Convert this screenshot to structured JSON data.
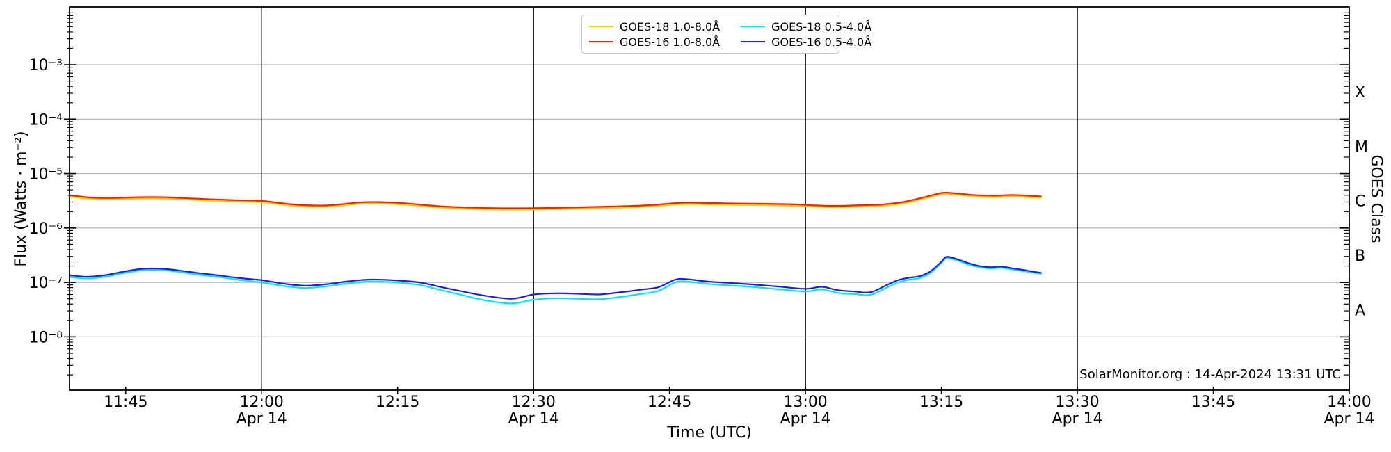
{
  "chart_data": {
    "type": "line",
    "title": "",
    "xlabel": "Time (UTC)",
    "ylabel": "Flux (Watts · m⁻²)",
    "ylabel_right": "GOES Class",
    "annotation": "SolarMonitor.org : 14-Apr-2024 13:31 UTC",
    "x_axis": {
      "unit": "hours UTC",
      "date": "Apr 14",
      "lim_hours": [
        11.6467,
        14.0
      ]
    },
    "y_axis": {
      "scale": "log",
      "lim": [
        1.05e-09,
        0.0115
      ]
    },
    "grid": true,
    "grid_color": "#b4b4b4",
    "vline_color": "#000000",
    "vlines_hours": [
      12.0,
      12.5,
      13.0,
      13.5
    ],
    "x_ticks": [
      {
        "t": 11.75,
        "label": "11:45",
        "sub": ""
      },
      {
        "t": 12.0,
        "label": "12:00",
        "sub": "Apr 14"
      },
      {
        "t": 12.25,
        "label": "12:15",
        "sub": ""
      },
      {
        "t": 12.5,
        "label": "12:30",
        "sub": "Apr 14"
      },
      {
        "t": 12.75,
        "label": "12:45",
        "sub": ""
      },
      {
        "t": 13.0,
        "label": "13:00",
        "sub": "Apr 14"
      },
      {
        "t": 13.25,
        "label": "13:15",
        "sub": ""
      },
      {
        "t": 13.5,
        "label": "13:30",
        "sub": "Apr 14"
      },
      {
        "t": 13.75,
        "label": "13:45",
        "sub": ""
      },
      {
        "t": 14.0,
        "label": "14:00",
        "sub": "Apr 14"
      }
    ],
    "y_ticks": [
      {
        "v": 0.001,
        "label": "10⁻³"
      },
      {
        "v": 0.0001,
        "label": "10⁻⁴"
      },
      {
        "v": 1e-05,
        "label": "10⁻⁵"
      },
      {
        "v": 1e-06,
        "label": "10⁻⁶"
      },
      {
        "v": 1e-07,
        "label": "10⁻⁷"
      },
      {
        "v": 1e-08,
        "label": "10⁻⁸"
      }
    ],
    "goes_class_ticks": [
      {
        "v": 0.000316,
        "label": "X"
      },
      {
        "v": 3.16e-05,
        "label": "M"
      },
      {
        "v": 3.16e-06,
        "label": "C"
      },
      {
        "v": 3.16e-07,
        "label": "B"
      },
      {
        "v": 3.16e-08,
        "label": "A"
      }
    ],
    "legend": {
      "position": "upper center",
      "items": [
        {
          "label": "GOES-18 1.0-8.0Å",
          "color": "#ffd000"
        },
        {
          "label": "GOES-16 1.0-8.0Å",
          "color": "#ff2000"
        },
        {
          "label": "GOES-18 0.5-4.0Å",
          "color": "#00e6f2"
        },
        {
          "label": "GOES-16 0.5-4.0Å",
          "color": "#2020e0"
        }
      ]
    },
    "series": [
      {
        "name": "GOES-18 1.0-8.0Å",
        "color": "#ffd000",
        "width": 2.8,
        "points": [
          [
            11.647,
            3.8e-06
          ],
          [
            11.665,
            3.61e-06
          ],
          [
            11.69,
            3.42e-06
          ],
          [
            11.72,
            3.37e-06
          ],
          [
            11.76,
            3.47e-06
          ],
          [
            11.8,
            3.52e-06
          ],
          [
            11.83,
            3.47e-06
          ],
          [
            11.87,
            3.33e-06
          ],
          [
            11.91,
            3.18e-06
          ],
          [
            11.95,
            3.09e-06
          ],
          [
            12.0,
            2.99e-06
          ],
          [
            12.03,
            2.76e-06
          ],
          [
            12.06,
            2.57e-06
          ],
          [
            12.09,
            2.47e-06
          ],
          [
            12.12,
            2.47e-06
          ],
          [
            12.15,
            2.61e-06
          ],
          [
            12.18,
            2.8e-06
          ],
          [
            12.21,
            2.85e-06
          ],
          [
            12.25,
            2.76e-06
          ],
          [
            12.29,
            2.57e-06
          ],
          [
            12.33,
            2.38e-06
          ],
          [
            12.37,
            2.28e-06
          ],
          [
            12.42,
            2.2e-06
          ],
          [
            12.47,
            2.19e-06
          ],
          [
            12.52,
            2.21e-06
          ],
          [
            12.57,
            2.26e-06
          ],
          [
            12.62,
            2.33e-06
          ],
          [
            12.67,
            2.39e-06
          ],
          [
            12.71,
            2.49e-06
          ],
          [
            12.75,
            2.66e-06
          ],
          [
            12.78,
            2.77e-06
          ],
          [
            12.82,
            2.74e-06
          ],
          [
            12.87,
            2.68e-06
          ],
          [
            12.93,
            2.64e-06
          ],
          [
            12.98,
            2.58e-06
          ],
          [
            13.02,
            2.47e-06
          ],
          [
            13.06,
            2.42e-06
          ],
          [
            13.1,
            2.49e-06
          ],
          [
            13.14,
            2.57e-06
          ],
          [
            13.18,
            2.85e-06
          ],
          [
            13.215,
            3.42e-06
          ],
          [
            13.245,
            4.09e-06
          ],
          [
            13.26,
            4.23e-06
          ],
          [
            13.285,
            4.04e-06
          ],
          [
            13.315,
            3.8e-06
          ],
          [
            13.35,
            3.72e-06
          ],
          [
            13.38,
            3.85e-06
          ],
          [
            13.41,
            3.72e-06
          ],
          [
            13.433,
            3.61e-06
          ]
        ]
      },
      {
        "name": "GOES-16 1.0-8.0Å",
        "color": "#ff2000",
        "width": 2.2,
        "points": [
          [
            11.647,
            4e-06
          ],
          [
            11.665,
            3.8e-06
          ],
          [
            11.69,
            3.6e-06
          ],
          [
            11.72,
            3.55e-06
          ],
          [
            11.76,
            3.65e-06
          ],
          [
            11.8,
            3.7e-06
          ],
          [
            11.83,
            3.65e-06
          ],
          [
            11.87,
            3.5e-06
          ],
          [
            11.91,
            3.35e-06
          ],
          [
            11.95,
            3.25e-06
          ],
          [
            12.0,
            3.15e-06
          ],
          [
            12.03,
            2.9e-06
          ],
          [
            12.06,
            2.7e-06
          ],
          [
            12.09,
            2.6e-06
          ],
          [
            12.12,
            2.6e-06
          ],
          [
            12.15,
            2.75e-06
          ],
          [
            12.18,
            2.95e-06
          ],
          [
            12.21,
            3e-06
          ],
          [
            12.25,
            2.9e-06
          ],
          [
            12.29,
            2.7e-06
          ],
          [
            12.33,
            2.5e-06
          ],
          [
            12.37,
            2.4e-06
          ],
          [
            12.42,
            2.32e-06
          ],
          [
            12.47,
            2.3e-06
          ],
          [
            12.52,
            2.33e-06
          ],
          [
            12.57,
            2.38e-06
          ],
          [
            12.62,
            2.45e-06
          ],
          [
            12.67,
            2.52e-06
          ],
          [
            12.71,
            2.62e-06
          ],
          [
            12.75,
            2.8e-06
          ],
          [
            12.78,
            2.92e-06
          ],
          [
            12.82,
            2.88e-06
          ],
          [
            12.87,
            2.82e-06
          ],
          [
            12.93,
            2.78e-06
          ],
          [
            12.98,
            2.72e-06
          ],
          [
            13.02,
            2.6e-06
          ],
          [
            13.06,
            2.55e-06
          ],
          [
            13.1,
            2.62e-06
          ],
          [
            13.14,
            2.7e-06
          ],
          [
            13.18,
            3e-06
          ],
          [
            13.215,
            3.6e-06
          ],
          [
            13.245,
            4.3e-06
          ],
          [
            13.26,
            4.45e-06
          ],
          [
            13.285,
            4.25e-06
          ],
          [
            13.315,
            4e-06
          ],
          [
            13.35,
            3.92e-06
          ],
          [
            13.38,
            4.05e-06
          ],
          [
            13.41,
            3.92e-06
          ],
          [
            13.433,
            3.8e-06
          ]
        ]
      },
      {
        "name": "GOES-18 0.5-4.0Å",
        "color": "#00e6f2",
        "width": 2.2,
        "points": [
          [
            11.647,
            1.25e-07
          ],
          [
            11.68,
            1.18e-07
          ],
          [
            11.71,
            1.26e-07
          ],
          [
            11.75,
            1.5e-07
          ],
          [
            11.78,
            1.68e-07
          ],
          [
            11.81,
            1.7e-07
          ],
          [
            11.84,
            1.6e-07
          ],
          [
            11.88,
            1.4e-07
          ],
          [
            11.92,
            1.26e-07
          ],
          [
            11.96,
            1.11e-07
          ],
          [
            12.0,
            1e-07
          ],
          [
            12.04,
            8.6e-08
          ],
          [
            12.08,
            7.9e-08
          ],
          [
            12.12,
            8.5e-08
          ],
          [
            12.16,
            9.6e-08
          ],
          [
            12.2,
            1.04e-07
          ],
          [
            12.24,
            1.01e-07
          ],
          [
            12.29,
            9e-08
          ],
          [
            12.33,
            7.2e-08
          ],
          [
            12.37,
            5.8e-08
          ],
          [
            12.41,
            4.7e-08
          ],
          [
            12.46,
            4.1e-08
          ],
          [
            12.5,
            4.8e-08
          ],
          [
            12.54,
            5.1e-08
          ],
          [
            12.58,
            5e-08
          ],
          [
            12.62,
            4.9e-08
          ],
          [
            12.66,
            5.4e-08
          ],
          [
            12.7,
            6.2e-08
          ],
          [
            12.73,
            7e-08
          ],
          [
            12.76,
            1e-07
          ],
          [
            12.78,
            1.04e-07
          ],
          [
            12.82,
            9.4e-08
          ],
          [
            12.86,
            8.8e-08
          ],
          [
            12.9,
            8.3e-08
          ],
          [
            12.95,
            7.5e-08
          ],
          [
            13.0,
            6.8e-08
          ],
          [
            13.03,
            7.4e-08
          ],
          [
            13.06,
            6.4e-08
          ],
          [
            13.09,
            6.1e-08
          ],
          [
            13.12,
            5.9e-08
          ],
          [
            13.15,
            8.1e-08
          ],
          [
            13.17,
            1e-07
          ],
          [
            13.19,
            1.12e-07
          ],
          [
            13.21,
            1.2e-07
          ],
          [
            13.23,
            1.5e-07
          ],
          [
            13.25,
            2.28e-07
          ],
          [
            13.26,
            2.8e-07
          ],
          [
            13.28,
            2.52e-07
          ],
          [
            13.3,
            2.12e-07
          ],
          [
            13.32,
            1.9e-07
          ],
          [
            13.34,
            1.8e-07
          ],
          [
            13.36,
            1.85e-07
          ],
          [
            13.38,
            1.73e-07
          ],
          [
            13.4,
            1.62e-07
          ],
          [
            13.42,
            1.5e-07
          ],
          [
            13.433,
            1.44e-07
          ]
        ]
      },
      {
        "name": "GOES-16 0.5-4.0Å",
        "color": "#2020e0",
        "width": 2.2,
        "points": [
          [
            11.647,
            1.35e-07
          ],
          [
            11.68,
            1.27e-07
          ],
          [
            11.71,
            1.35e-07
          ],
          [
            11.75,
            1.6e-07
          ],
          [
            11.78,
            1.78e-07
          ],
          [
            11.81,
            1.8e-07
          ],
          [
            11.84,
            1.7e-07
          ],
          [
            11.88,
            1.5e-07
          ],
          [
            11.92,
            1.35e-07
          ],
          [
            11.96,
            1.2e-07
          ],
          [
            12.0,
            1.1e-07
          ],
          [
            12.04,
            9.5e-08
          ],
          [
            12.08,
            8.7e-08
          ],
          [
            12.12,
            9.3e-08
          ],
          [
            12.16,
            1.05e-07
          ],
          [
            12.2,
            1.13e-07
          ],
          [
            12.24,
            1.1e-07
          ],
          [
            12.29,
            1e-07
          ],
          [
            12.33,
            8.2e-08
          ],
          [
            12.37,
            6.8e-08
          ],
          [
            12.41,
            5.7e-08
          ],
          [
            12.46,
            5e-08
          ],
          [
            12.5,
            6e-08
          ],
          [
            12.54,
            6.3e-08
          ],
          [
            12.58,
            6.2e-08
          ],
          [
            12.62,
            6e-08
          ],
          [
            12.66,
            6.6e-08
          ],
          [
            12.7,
            7.4e-08
          ],
          [
            12.73,
            8.2e-08
          ],
          [
            12.76,
            1.12e-07
          ],
          [
            12.78,
            1.15e-07
          ],
          [
            12.82,
            1.04e-07
          ],
          [
            12.86,
            9.8e-08
          ],
          [
            12.9,
            9.2e-08
          ],
          [
            12.95,
            8.4e-08
          ],
          [
            13.0,
            7.6e-08
          ],
          [
            13.03,
            8.3e-08
          ],
          [
            13.06,
            7.2e-08
          ],
          [
            13.09,
            6.8e-08
          ],
          [
            13.12,
            6.6e-08
          ],
          [
            13.15,
            9e-08
          ],
          [
            13.17,
            1.1e-07
          ],
          [
            13.19,
            1.22e-07
          ],
          [
            13.21,
            1.3e-07
          ],
          [
            13.23,
            1.6e-07
          ],
          [
            13.25,
            2.4e-07
          ],
          [
            13.26,
            2.95e-07
          ],
          [
            13.28,
            2.65e-07
          ],
          [
            13.3,
            2.25e-07
          ],
          [
            13.32,
            2e-07
          ],
          [
            13.34,
            1.9e-07
          ],
          [
            13.36,
            1.95e-07
          ],
          [
            13.38,
            1.82e-07
          ],
          [
            13.4,
            1.7e-07
          ],
          [
            13.42,
            1.57e-07
          ],
          [
            13.433,
            1.5e-07
          ]
        ]
      }
    ]
  }
}
